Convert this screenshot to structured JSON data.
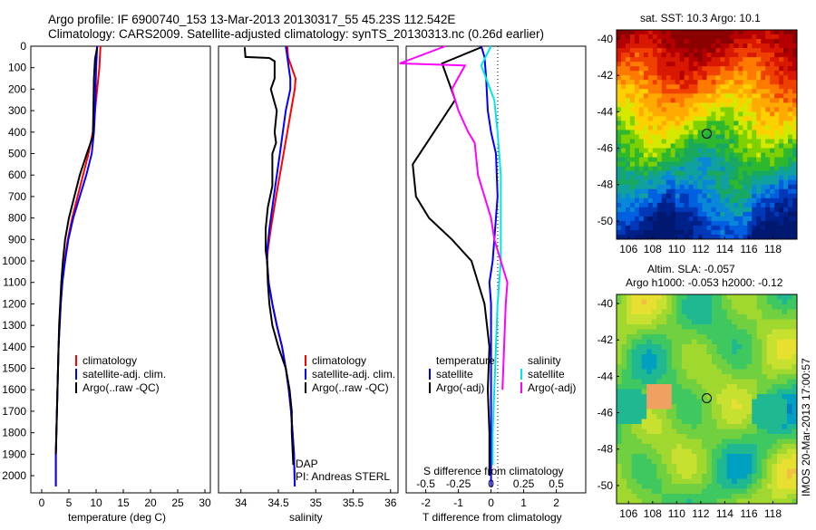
{
  "title": {
    "line1": "Argo profile: IF 6900740_153 13-Mar-2013 20130317_55 45.23S 112.542E",
    "line2": "Climatology: CARS2009. Satellite-adjusted climatology: synTS_20130313.nc (0.26d earlier)"
  },
  "colors": {
    "climatology": "#ff0000",
    "satellite": "#0000ff",
    "argo": "#000000",
    "argo_adj_sal": "#ff00ff",
    "satellite_sal": "#00e5e5"
  },
  "side_stamp": "IMOS 20-Mar-2013 17:00:57",
  "chart_data": [
    {
      "type": "line",
      "id": "temperature",
      "xlabel": "temperature (deg C)",
      "ylabel": "",
      "xlim": [
        -2,
        31
      ],
      "ylim": [
        0,
        2080
      ],
      "xticks": [
        "0",
        "5",
        "10",
        "15",
        "20",
        "25",
        "30"
      ],
      "yticks": [
        "0",
        "100",
        "200",
        "300",
        "400",
        "500",
        "600",
        "700",
        "800",
        "900",
        "1000",
        "1100",
        "1200",
        "1300",
        "1400",
        "1500",
        "1600",
        "1700",
        "1800",
        "1900",
        "2000"
      ],
      "legend": [
        "climatology",
        "satellite-adj. clim.",
        "Argo(..raw -QC)"
      ],
      "series": [
        {
          "name": "climatology",
          "color": "#ff0000",
          "x": [
            10.8,
            10.6,
            10.2,
            9.8,
            9.4,
            8.6,
            7.6,
            6.6,
            5.6,
            4.8,
            4.2,
            3.8,
            3.5,
            3.3,
            3.1,
            3.0,
            2.9,
            2.8,
            2.7,
            2.6,
            2.6
          ],
          "y": [
            0,
            100,
            200,
            300,
            400,
            500,
            600,
            700,
            800,
            900,
            1000,
            1100,
            1200,
            1300,
            1400,
            1500,
            1600,
            1700,
            1800,
            1900,
            2050
          ]
        },
        {
          "name": "satellite-adj. clim.",
          "color": "#0000ff",
          "x": [
            10.2,
            10.0,
            9.9,
            9.8,
            9.6,
            9.2,
            8.2,
            7.0,
            5.8,
            4.9,
            4.3,
            3.8,
            3.5,
            3.3,
            3.1,
            3.0,
            2.9,
            2.8,
            2.7,
            2.6,
            2.6
          ],
          "y": [
            0,
            100,
            200,
            300,
            400,
            500,
            600,
            700,
            800,
            900,
            1000,
            1100,
            1200,
            1300,
            1400,
            1500,
            1600,
            1700,
            1800,
            1900,
            2050
          ]
        },
        {
          "name": "Argo(..raw -QC)",
          "color": "#000000",
          "x": [
            10.2,
            9.8,
            9.6,
            9.5,
            9.4,
            8.3,
            7.0,
            6.0,
            5.0,
            4.3,
            3.9,
            3.6,
            3.4,
            3.2,
            3.1,
            3.0,
            2.9,
            2.8,
            2.7,
            2.6
          ],
          "y": [
            5,
            60,
            150,
            300,
            420,
            500,
            600,
            700,
            800,
            900,
            1000,
            1100,
            1200,
            1300,
            1400,
            1500,
            1600,
            1700,
            1800,
            1900
          ]
        }
      ]
    },
    {
      "type": "line",
      "id": "salinity",
      "xlabel": "salinity",
      "xlim": [
        33.7,
        36.1
      ],
      "ylim": [
        0,
        2080
      ],
      "xticks": [
        "34",
        "34.5",
        "35",
        "35.5",
        "36"
      ],
      "legend": [
        "climatology",
        "satellite-adj. clim.",
        "Argo(..raw -QC)"
      ],
      "annotation": [
        "DAP",
        "PI: Andreas STERL"
      ],
      "series": [
        {
          "name": "climatology",
          "color": "#ff0000",
          "x": [
            34.62,
            34.63,
            34.68,
            34.73,
            34.72,
            34.67,
            34.57,
            34.47,
            34.4,
            34.36,
            34.35,
            34.37,
            34.42,
            34.48,
            34.55,
            34.6,
            34.64,
            34.67,
            34.69,
            34.71,
            34.72
          ],
          "y": [
            0,
            50,
            100,
            150,
            200,
            300,
            500,
            700,
            850,
            950,
            1000,
            1100,
            1200,
            1300,
            1400,
            1500,
            1600,
            1700,
            1800,
            1900,
            2050
          ]
        },
        {
          "name": "satellite-adj. clim.",
          "color": "#0000ff",
          "x": [
            34.6,
            34.62,
            34.64,
            34.66,
            34.66,
            34.6,
            34.52,
            34.44,
            34.38,
            34.35,
            34.35,
            34.37,
            34.42,
            34.48,
            34.55,
            34.6,
            34.64,
            34.67,
            34.69,
            34.71,
            34.72
          ],
          "y": [
            0,
            50,
            100,
            150,
            200,
            300,
            500,
            700,
            850,
            950,
            1000,
            1100,
            1200,
            1300,
            1400,
            1500,
            1600,
            1700,
            1800,
            1900,
            2050
          ]
        },
        {
          "name": "Argo(..raw -QC)",
          "color": "#000000",
          "x": [
            34.05,
            34.06,
            34.38,
            34.45,
            34.45,
            34.4,
            34.48,
            34.45,
            34.47,
            34.42,
            34.42,
            34.42,
            34.36,
            34.33,
            34.33,
            34.35,
            34.36,
            34.38,
            34.42,
            34.5,
            34.6,
            34.65,
            34.68,
            34.68,
            34.7
          ],
          "y": [
            5,
            50,
            55,
            70,
            150,
            200,
            300,
            400,
            450,
            500,
            550,
            650,
            750,
            850,
            950,
            1000,
            1100,
            1200,
            1300,
            1400,
            1500,
            1600,
            1700,
            1800,
            1950
          ]
        }
      ]
    },
    {
      "type": "line",
      "id": "differences",
      "xlabel": "T difference from climatology",
      "top_label": "S difference from climatology",
      "xlim": [
        -2.6,
        2.9
      ],
      "ylim": [
        0,
        2080
      ],
      "xticks_T": [
        "-2",
        "-1",
        "0",
        "1",
        "2"
      ],
      "xticks_S": [
        "-0.5",
        "-0.25",
        "0",
        "0.25",
        "0.5"
      ],
      "legend_T": [
        "temperature",
        "satellite",
        "Argo(-adj)"
      ],
      "legend_S": [
        "salinity",
        "satellite",
        "Argo(-adj)"
      ],
      "series": [
        {
          "name": "temperature satellite",
          "color": "#0000ff",
          "x": [
            -0.3,
            -0.2,
            -0.15,
            -0.1,
            0.0,
            0.15,
            0.2,
            0.1,
            0.05,
            -0.05,
            0.0,
            0.0,
            0.0,
            0.0,
            0.0,
            0.0
          ],
          "y": [
            0,
            50,
            150,
            300,
            400,
            500,
            700,
            900,
            1000,
            1100,
            1200,
            1400,
            1600,
            1800,
            1900,
            2050
          ]
        },
        {
          "name": "temperature Argo(-adj)",
          "color": "#000000",
          "x": [
            -0.3,
            -1.5,
            -1.1,
            -2.4,
            -2.3,
            -1.9,
            -1.2,
            -0.6,
            -0.2,
            -0.05,
            -0.1,
            -0.05,
            -0.05,
            -0.05
          ],
          "y": [
            5,
            80,
            250,
            550,
            700,
            800,
            900,
            1000,
            1200,
            1400,
            1600,
            1800,
            1900,
            2000
          ]
        },
        {
          "name": "salinity satellite",
          "color": "#00e5e5",
          "x": [
            0.0,
            -0.3,
            -0.15,
            0.1,
            0.2,
            0.3,
            0.3,
            0.3,
            0.2,
            0.15,
            0.1,
            0.05,
            0.05
          ],
          "y": [
            0,
            90,
            150,
            250,
            400,
            600,
            800,
            1000,
            1200,
            1400,
            1600,
            1800,
            1950
          ]
        },
        {
          "name": "salinity Argo(-adj)",
          "color": "#ff00ff",
          "x": [
            -1.4,
            -2.8,
            -0.8,
            -1.2,
            -1.0,
            -0.7,
            -0.5,
            -0.4,
            -0.2,
            0.0,
            0.1,
            0.3,
            0.5,
            0.45,
            0.4,
            0.35
          ],
          "y": [
            0,
            80,
            90,
            200,
            300,
            400,
            450,
            600,
            700,
            800,
            900,
            1000,
            1100,
            1200,
            1400,
            1600
          ]
        }
      ]
    },
    {
      "type": "heatmap",
      "id": "sst-map",
      "title": "sat. SST: 10.3 Argo: 10.1",
      "xticks": [
        "106",
        "108",
        "110",
        "112",
        "114",
        "116",
        "118"
      ],
      "yticks": [
        "-40",
        "-42",
        "-44",
        "-46",
        "-48",
        "-50"
      ],
      "xlim": [
        105,
        120
      ],
      "ylim": [
        -51,
        -39.5
      ],
      "marker": [
        112.5,
        -45.2
      ]
    },
    {
      "type": "heatmap",
      "id": "sla-map",
      "title": [
        "Altim. SLA: -0.057",
        "Argo h1000: -0.053 h2000: -0.12"
      ],
      "xticks": [
        "106",
        "108",
        "110",
        "112",
        "114",
        "116",
        "118"
      ],
      "yticks": [
        "-40",
        "-42",
        "-44",
        "-46",
        "-48",
        "-50"
      ],
      "xlim": [
        105,
        120
      ],
      "ylim": [
        -51,
        -39.5
      ],
      "marker": [
        112.5,
        -45.2
      ]
    }
  ]
}
